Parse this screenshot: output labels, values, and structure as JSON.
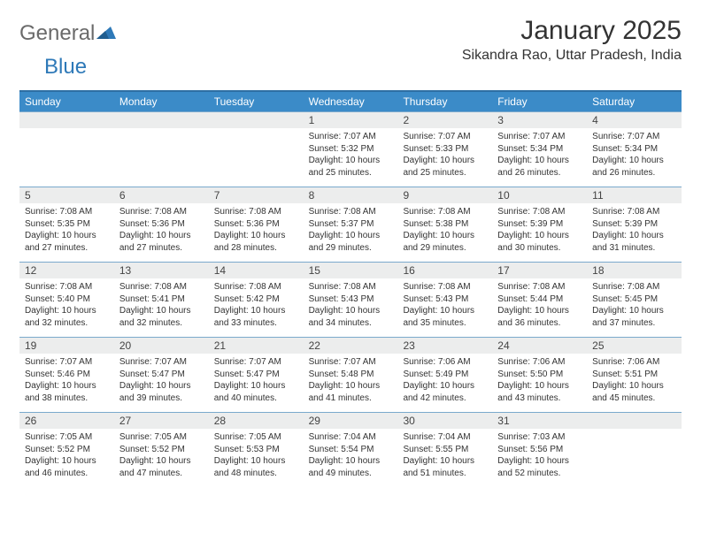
{
  "logo": {
    "text1": "General",
    "text2": "Blue"
  },
  "title": "January 2025",
  "location": "Sikandra Rao, Uttar Pradesh, India",
  "colors": {
    "header_bg": "#3b8bc8",
    "header_border": "#2e6fa3",
    "row_border": "#7aa9cc",
    "daynum_bg": "#eceded",
    "text": "#333333",
    "logo_gray": "#6a6a6a",
    "logo_blue": "#2e79b8"
  },
  "weekdays": [
    "Sunday",
    "Monday",
    "Tuesday",
    "Wednesday",
    "Thursday",
    "Friday",
    "Saturday"
  ],
  "weeks": [
    [
      null,
      null,
      null,
      {
        "n": "1",
        "sunrise": "7:07 AM",
        "sunset": "5:32 PM",
        "dl1": "Daylight: 10 hours",
        "dl2": "and 25 minutes."
      },
      {
        "n": "2",
        "sunrise": "7:07 AM",
        "sunset": "5:33 PM",
        "dl1": "Daylight: 10 hours",
        "dl2": "and 25 minutes."
      },
      {
        "n": "3",
        "sunrise": "7:07 AM",
        "sunset": "5:34 PM",
        "dl1": "Daylight: 10 hours",
        "dl2": "and 26 minutes."
      },
      {
        "n": "4",
        "sunrise": "7:07 AM",
        "sunset": "5:34 PM",
        "dl1": "Daylight: 10 hours",
        "dl2": "and 26 minutes."
      }
    ],
    [
      {
        "n": "5",
        "sunrise": "7:08 AM",
        "sunset": "5:35 PM",
        "dl1": "Daylight: 10 hours",
        "dl2": "and 27 minutes."
      },
      {
        "n": "6",
        "sunrise": "7:08 AM",
        "sunset": "5:36 PM",
        "dl1": "Daylight: 10 hours",
        "dl2": "and 27 minutes."
      },
      {
        "n": "7",
        "sunrise": "7:08 AM",
        "sunset": "5:36 PM",
        "dl1": "Daylight: 10 hours",
        "dl2": "and 28 minutes."
      },
      {
        "n": "8",
        "sunrise": "7:08 AM",
        "sunset": "5:37 PM",
        "dl1": "Daylight: 10 hours",
        "dl2": "and 29 minutes."
      },
      {
        "n": "9",
        "sunrise": "7:08 AM",
        "sunset": "5:38 PM",
        "dl1": "Daylight: 10 hours",
        "dl2": "and 29 minutes."
      },
      {
        "n": "10",
        "sunrise": "7:08 AM",
        "sunset": "5:39 PM",
        "dl1": "Daylight: 10 hours",
        "dl2": "and 30 minutes."
      },
      {
        "n": "11",
        "sunrise": "7:08 AM",
        "sunset": "5:39 PM",
        "dl1": "Daylight: 10 hours",
        "dl2": "and 31 minutes."
      }
    ],
    [
      {
        "n": "12",
        "sunrise": "7:08 AM",
        "sunset": "5:40 PM",
        "dl1": "Daylight: 10 hours",
        "dl2": "and 32 minutes."
      },
      {
        "n": "13",
        "sunrise": "7:08 AM",
        "sunset": "5:41 PM",
        "dl1": "Daylight: 10 hours",
        "dl2": "and 32 minutes."
      },
      {
        "n": "14",
        "sunrise": "7:08 AM",
        "sunset": "5:42 PM",
        "dl1": "Daylight: 10 hours",
        "dl2": "and 33 minutes."
      },
      {
        "n": "15",
        "sunrise": "7:08 AM",
        "sunset": "5:43 PM",
        "dl1": "Daylight: 10 hours",
        "dl2": "and 34 minutes."
      },
      {
        "n": "16",
        "sunrise": "7:08 AM",
        "sunset": "5:43 PM",
        "dl1": "Daylight: 10 hours",
        "dl2": "and 35 minutes."
      },
      {
        "n": "17",
        "sunrise": "7:08 AM",
        "sunset": "5:44 PM",
        "dl1": "Daylight: 10 hours",
        "dl2": "and 36 minutes."
      },
      {
        "n": "18",
        "sunrise": "7:08 AM",
        "sunset": "5:45 PM",
        "dl1": "Daylight: 10 hours",
        "dl2": "and 37 minutes."
      }
    ],
    [
      {
        "n": "19",
        "sunrise": "7:07 AM",
        "sunset": "5:46 PM",
        "dl1": "Daylight: 10 hours",
        "dl2": "and 38 minutes."
      },
      {
        "n": "20",
        "sunrise": "7:07 AM",
        "sunset": "5:47 PM",
        "dl1": "Daylight: 10 hours",
        "dl2": "and 39 minutes."
      },
      {
        "n": "21",
        "sunrise": "7:07 AM",
        "sunset": "5:47 PM",
        "dl1": "Daylight: 10 hours",
        "dl2": "and 40 minutes."
      },
      {
        "n": "22",
        "sunrise": "7:07 AM",
        "sunset": "5:48 PM",
        "dl1": "Daylight: 10 hours",
        "dl2": "and 41 minutes."
      },
      {
        "n": "23",
        "sunrise": "7:06 AM",
        "sunset": "5:49 PM",
        "dl1": "Daylight: 10 hours",
        "dl2": "and 42 minutes."
      },
      {
        "n": "24",
        "sunrise": "7:06 AM",
        "sunset": "5:50 PM",
        "dl1": "Daylight: 10 hours",
        "dl2": "and 43 minutes."
      },
      {
        "n": "25",
        "sunrise": "7:06 AM",
        "sunset": "5:51 PM",
        "dl1": "Daylight: 10 hours",
        "dl2": "and 45 minutes."
      }
    ],
    [
      {
        "n": "26",
        "sunrise": "7:05 AM",
        "sunset": "5:52 PM",
        "dl1": "Daylight: 10 hours",
        "dl2": "and 46 minutes."
      },
      {
        "n": "27",
        "sunrise": "7:05 AM",
        "sunset": "5:52 PM",
        "dl1": "Daylight: 10 hours",
        "dl2": "and 47 minutes."
      },
      {
        "n": "28",
        "sunrise": "7:05 AM",
        "sunset": "5:53 PM",
        "dl1": "Daylight: 10 hours",
        "dl2": "and 48 minutes."
      },
      {
        "n": "29",
        "sunrise": "7:04 AM",
        "sunset": "5:54 PM",
        "dl1": "Daylight: 10 hours",
        "dl2": "and 49 minutes."
      },
      {
        "n": "30",
        "sunrise": "7:04 AM",
        "sunset": "5:55 PM",
        "dl1": "Daylight: 10 hours",
        "dl2": "and 51 minutes."
      },
      {
        "n": "31",
        "sunrise": "7:03 AM",
        "sunset": "5:56 PM",
        "dl1": "Daylight: 10 hours",
        "dl2": "and 52 minutes."
      },
      null
    ]
  ],
  "labels": {
    "sunrise": "Sunrise: ",
    "sunset": "Sunset: "
  }
}
